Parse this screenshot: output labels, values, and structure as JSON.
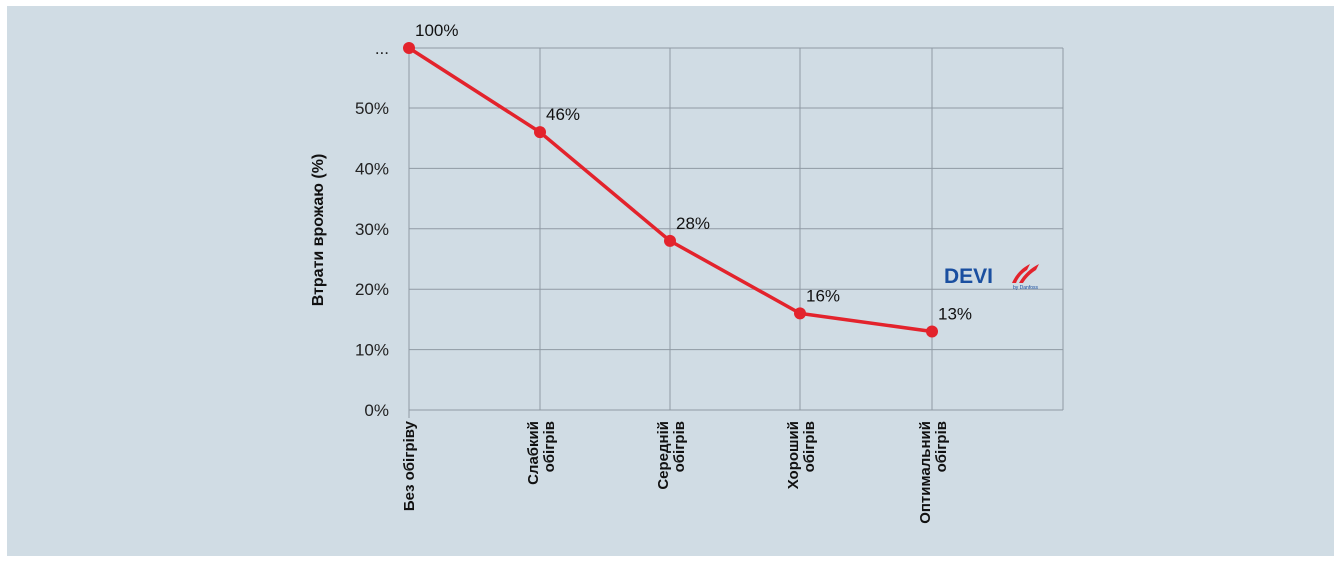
{
  "chart_data": {
    "type": "line",
    "ylabel": "Втрати врожаю (%)",
    "yticks": [
      "0%",
      "10%",
      "20%",
      "30%",
      "40%",
      "50%",
      "..."
    ],
    "ylim": [
      0,
      60
    ],
    "grid": true,
    "categories": [
      [
        "Без обігріву"
      ],
      [
        "Слабкий",
        "обігрів"
      ],
      [
        "Середній",
        "обігрів"
      ],
      [
        "Хороший",
        "обігрів"
      ],
      [
        "Оптимальний",
        "обігрів"
      ]
    ],
    "series": [
      {
        "values": [
          100,
          46,
          28,
          16,
          13
        ],
        "labels": [
          "100%",
          "46%",
          "28%",
          "16%",
          "13%"
        ],
        "color": "#e3232c"
      }
    ],
    "axis_break": "the top tick '...' stands for 100%"
  },
  "logo": {
    "text": "DEVI",
    "sub": "by Danfoss",
    "color": "#1a4fa0",
    "accent": "#e3232c"
  }
}
